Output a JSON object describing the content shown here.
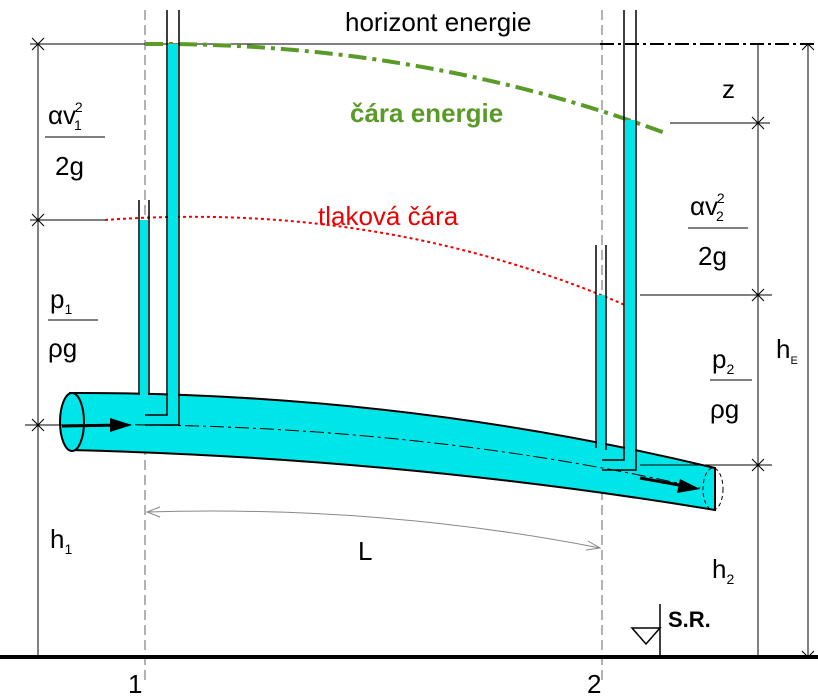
{
  "labels": {
    "horizon": "horizont energie",
    "energy_line": "čára energie",
    "pressure_line": "tlaková čára",
    "z": "z",
    "length": "L",
    "datum": "S.R."
  },
  "velocity_head_1": {
    "numerator": "αv",
    "sub": "1",
    "sup": "2",
    "denominator": "2g"
  },
  "velocity_head_2": {
    "numerator": "αv",
    "sub": "2",
    "sup": "2",
    "denominator": "2g"
  },
  "pressure_head_1": {
    "numerator": "p",
    "sub": "1",
    "denominator": "ρg"
  },
  "pressure_head_2": {
    "numerator": "p",
    "sub": "2",
    "denominator": "ρg"
  },
  "h_E": {
    "base": "h",
    "sub": "E"
  },
  "h_1": {
    "base": "h",
    "sub": "1"
  },
  "h_2": {
    "base": "h",
    "sub": "2"
  },
  "sections": [
    "1",
    "2"
  ]
}
